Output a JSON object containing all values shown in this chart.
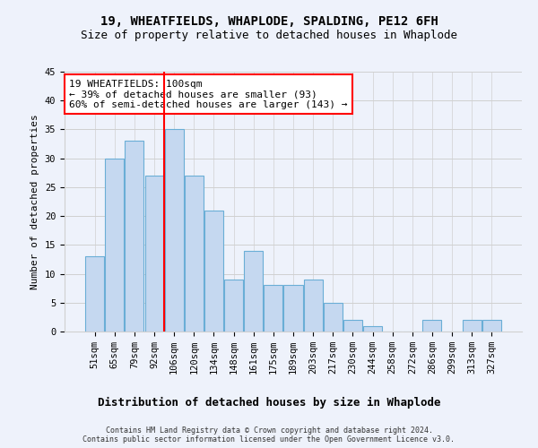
{
  "title": "19, WHEATFIELDS, WHAPLODE, SPALDING, PE12 6FH",
  "subtitle": "Size of property relative to detached houses in Whaplode",
  "xlabel": "Distribution of detached houses by size in Whaplode",
  "ylabel": "Number of detached properties",
  "categories": [
    "51sqm",
    "65sqm",
    "79sqm",
    "92sqm",
    "106sqm",
    "120sqm",
    "134sqm",
    "148sqm",
    "161sqm",
    "175sqm",
    "189sqm",
    "203sqm",
    "217sqm",
    "230sqm",
    "244sqm",
    "258sqm",
    "272sqm",
    "286sqm",
    "299sqm",
    "313sqm",
    "327sqm"
  ],
  "values": [
    13,
    30,
    33,
    27,
    35,
    27,
    21,
    9,
    14,
    8,
    8,
    9,
    5,
    2,
    1,
    0,
    0,
    2,
    0,
    2,
    2
  ],
  "bar_color": "#c5d8f0",
  "bar_edge_color": "#6aaed6",
  "marker_line_index": 4,
  "marker_label": "19 WHEATFIELDS: 100sqm",
  "annotation_line1": "← 39% of detached houses are smaller (93)",
  "annotation_line2": "60% of semi-detached houses are larger (143) →",
  "ylim": [
    0,
    45
  ],
  "yticks": [
    0,
    5,
    10,
    15,
    20,
    25,
    30,
    35,
    40,
    45
  ],
  "footer_line1": "Contains HM Land Registry data © Crown copyright and database right 2024.",
  "footer_line2": "Contains public sector information licensed under the Open Government Licence v3.0.",
  "bg_color": "#eef2fb",
  "grid_color": "#d0d0d0",
  "title_fontsize": 10,
  "subtitle_fontsize": 9,
  "ylabel_fontsize": 8,
  "xlabel_fontsize": 9,
  "tick_fontsize": 7.5,
  "annotation_fontsize": 8,
  "footer_fontsize": 6
}
